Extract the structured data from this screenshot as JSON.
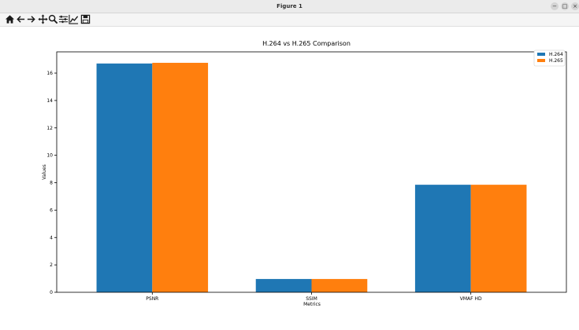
{
  "window": {
    "title": "Figure 1",
    "controls": {
      "minimize": "−",
      "maximize": "□",
      "close": "×"
    }
  },
  "toolbar": {
    "tools": [
      {
        "name": "home-icon",
        "tooltip": "Reset original view"
      },
      {
        "name": "back-arrow-icon",
        "tooltip": "Back to previous view"
      },
      {
        "name": "forward-arrow-icon",
        "tooltip": "Forward to next view"
      },
      {
        "name": "pan-icon",
        "tooltip": "Pan axes"
      },
      {
        "name": "zoom-icon",
        "tooltip": "Zoom to rectangle"
      },
      {
        "name": "configure-subplots-icon",
        "tooltip": "Configure subplots"
      },
      {
        "name": "edit-axis-icon",
        "tooltip": "Edit axis and curve parameters"
      },
      {
        "name": "save-icon",
        "tooltip": "Save the figure"
      }
    ]
  },
  "chart_data": {
    "type": "bar",
    "title": "H.264 vs H.265 Comparison",
    "xlabel": "Metrics",
    "ylabel": "Values",
    "categories": [
      "PSNR",
      "SSIM",
      "VMAF HD"
    ],
    "series": [
      {
        "name": "H.264",
        "values": [
          16.7,
          0.97,
          7.85
        ],
        "color": "#1f77b4"
      },
      {
        "name": "H.265",
        "values": [
          16.75,
          0.97,
          7.85
        ],
        "color": "#ff7f0e"
      }
    ],
    "ylim": [
      0,
      17.55
    ],
    "yticks": [
      "0",
      "2",
      "4",
      "6",
      "8",
      "10",
      "12",
      "14",
      "16"
    ],
    "legend": "top-right",
    "grid": false
  }
}
